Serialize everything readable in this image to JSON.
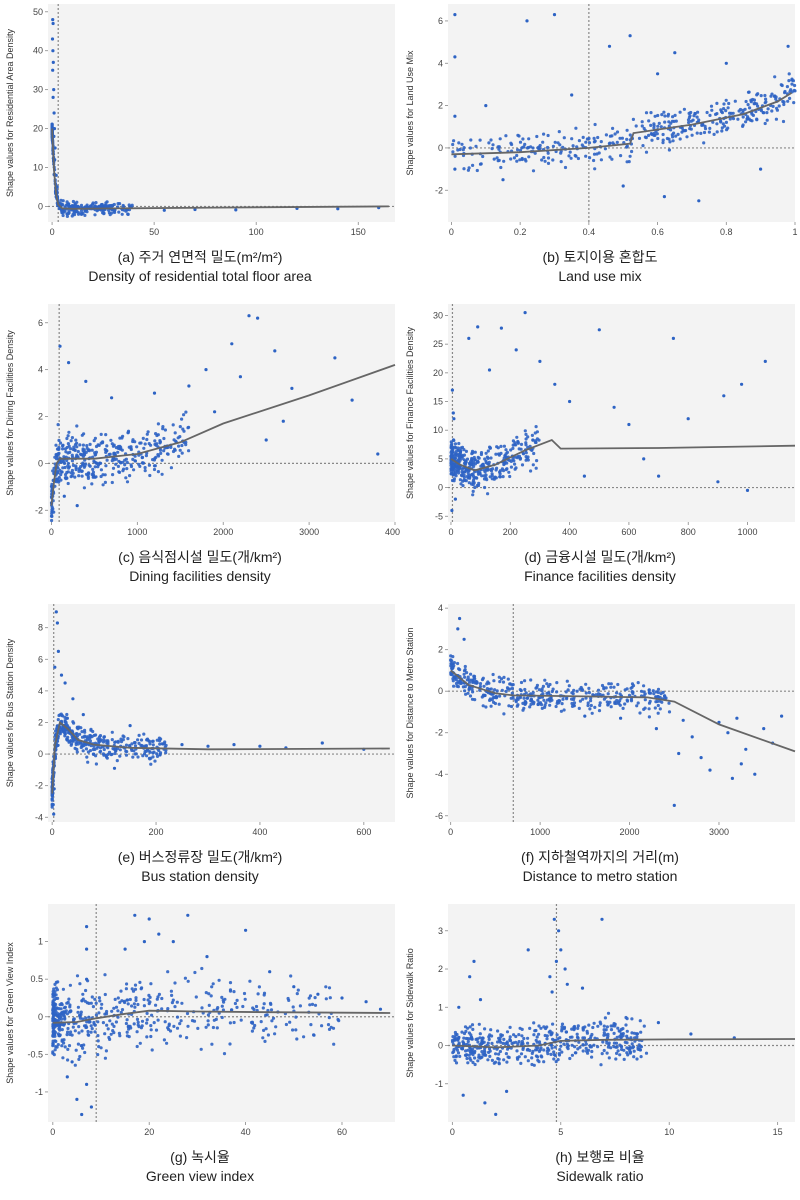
{
  "colors": {
    "point": "#2d63c4",
    "trend": "#666666",
    "zero_line": "#888888",
    "axis": "#cccccc",
    "plot_bg": "#f3f3f3"
  },
  "chart_data": [
    {
      "type": "scatter",
      "title": "(a) 주거 연면적 밀도(m²/m²)",
      "subtitle": "Density of residential total floor area",
      "xlabel": "",
      "ylabel": "Shape values for Residential Area Density",
      "xlim": [
        -2,
        168
      ],
      "ylim": [
        -4,
        52
      ],
      "xticks": [
        0,
        50,
        100,
        150
      ],
      "yticks": [
        0,
        10,
        20,
        30,
        40,
        50
      ],
      "vline": 3,
      "trend": [
        [
          0,
          20
        ],
        [
          1,
          9
        ],
        [
          2,
          3
        ],
        [
          3,
          0.5
        ],
        [
          5,
          -0.5
        ],
        [
          10,
          -0.6
        ],
        [
          30,
          -0.5
        ],
        [
          80,
          -0.3
        ],
        [
          165,
          0
        ]
      ],
      "cluster": {
        "x_range": [
          0,
          40
        ],
        "skew": 3,
        "noise": 0.8,
        "n": 320
      },
      "extra_points": [
        [
          0.3,
          48
        ],
        [
          0.5,
          47
        ],
        [
          0.2,
          43
        ],
        [
          0.4,
          40
        ],
        [
          0.6,
          37
        ],
        [
          0.3,
          35
        ],
        [
          0.8,
          30
        ],
        [
          0.5,
          28
        ],
        [
          1,
          24
        ],
        [
          1.2,
          20
        ],
        [
          0.9,
          18
        ],
        [
          1.5,
          15
        ],
        [
          1.3,
          12
        ],
        [
          2,
          8
        ],
        [
          2.5,
          5
        ],
        [
          55,
          -1
        ],
        [
          70,
          -0.8
        ],
        [
          90,
          -0.9
        ],
        [
          120,
          -0.5
        ],
        [
          140,
          -0.6
        ],
        [
          160,
          -0.3
        ]
      ]
    },
    {
      "type": "scatter",
      "title": "(b) 토지이용 혼합도",
      "subtitle": "Land use mix",
      "xlabel": "",
      "ylabel": "Shape values for Land Use Mix",
      "xlim": [
        -0.01,
        1.0
      ],
      "ylim": [
        -3.5,
        6.8
      ],
      "xticks": [
        0,
        0.2,
        0.4,
        0.6,
        0.8,
        1
      ],
      "yticks": [
        -2,
        0,
        2,
        4,
        6
      ],
      "vline": 0.4,
      "trend": [
        [
          0,
          -0.3
        ],
        [
          0.2,
          -0.2
        ],
        [
          0.4,
          0
        ],
        [
          0.52,
          0.2
        ],
        [
          0.53,
          0.7
        ],
        [
          0.7,
          1.1
        ],
        [
          0.85,
          1.6
        ],
        [
          0.95,
          2.2
        ],
        [
          0.99,
          2.6
        ]
      ],
      "cluster": {
        "x_range": [
          0,
          1
        ],
        "skew": 0.8,
        "noise": 0.45,
        "n": 420
      },
      "extra_points": [
        [
          0.01,
          6.3
        ],
        [
          0.01,
          4.3
        ],
        [
          0.01,
          1.5
        ],
        [
          0.01,
          -1.0
        ],
        [
          0.22,
          6.0
        ],
        [
          0.3,
          6.3
        ],
        [
          0.46,
          4.8
        ],
        [
          0.52,
          5.3
        ],
        [
          0.6,
          3.5
        ],
        [
          0.65,
          4.5
        ],
        [
          0.72,
          -2.5
        ],
        [
          0.8,
          4.0
        ],
        [
          0.9,
          -1.0
        ],
        [
          0.98,
          4.8
        ],
        [
          0.35,
          2.5
        ],
        [
          0.1,
          2.0
        ],
        [
          0.15,
          -1.5
        ],
        [
          0.5,
          -1.8
        ],
        [
          0.62,
          -2.3
        ]
      ]
    },
    {
      "type": "scatter",
      "title": "(c) 음식점시설 밀도(개/km²)",
      "subtitle": "Dining facilities density",
      "xlabel": "",
      "ylabel": "Shape values for Dining Facilities Density",
      "xlim": [
        -40,
        4000
      ],
      "ylim": [
        -2.5,
        6.8
      ],
      "xticks": [
        0,
        1000,
        2000,
        3000,
        4000
      ],
      "yticks": [
        -2,
        0,
        2,
        4,
        6
      ],
      "vline": 90,
      "trend": [
        [
          0,
          -1.8
        ],
        [
          30,
          -0.8
        ],
        [
          60,
          0
        ],
        [
          100,
          0.2
        ],
        [
          500,
          0.2
        ],
        [
          1000,
          0.4
        ],
        [
          1500,
          0.9
        ],
        [
          2000,
          1.7
        ],
        [
          3000,
          2.9
        ],
        [
          4000,
          4.2
        ]
      ],
      "cluster": {
        "x_range": [
          0,
          1600
        ],
        "skew": 1.6,
        "noise": 0.55,
        "n": 420
      },
      "extra_points": [
        [
          2300,
          6.3
        ],
        [
          2400,
          6.2
        ],
        [
          2100,
          5.1
        ],
        [
          2600,
          4.8
        ],
        [
          1800,
          4.0
        ],
        [
          2800,
          3.2
        ],
        [
          3300,
          4.5
        ],
        [
          2200,
          3.7
        ],
        [
          1600,
          3.3
        ],
        [
          2500,
          1.0
        ],
        [
          3500,
          2.7
        ],
        [
          3800,
          0.4
        ],
        [
          1900,
          2.2
        ],
        [
          2700,
          1.8
        ],
        [
          400,
          3.5
        ],
        [
          200,
          4.3
        ],
        [
          100,
          5.0
        ],
        [
          700,
          2.8
        ],
        [
          1200,
          3.0
        ],
        [
          300,
          -1.8
        ],
        [
          150,
          -1.4
        ]
      ]
    },
    {
      "type": "scatter",
      "title": "(d) 금융시설 밀도(개/km²)",
      "subtitle": "Finance facilities density",
      "xlabel": "",
      "ylabel": "Shape values for Finance Facilities Density",
      "xlim": [
        -10,
        1160
      ],
      "ylim": [
        -6,
        32
      ],
      "xticks": [
        0,
        200,
        400,
        600,
        800,
        1000
      ],
      "yticks": [
        -5,
        0,
        5,
        10,
        15,
        20,
        25,
        30
      ],
      "vline": 5,
      "trend": [
        [
          0,
          5
        ],
        [
          30,
          4
        ],
        [
          80,
          3
        ],
        [
          150,
          4
        ],
        [
          250,
          6.5
        ],
        [
          340,
          8.3
        ],
        [
          370,
          6.8
        ],
        [
          700,
          6.9
        ],
        [
          1160,
          7.3
        ]
      ],
      "cluster": {
        "x_range": [
          0,
          300
        ],
        "skew": 1.8,
        "noise": 1.8,
        "n": 380
      },
      "extra_points": [
        [
          250,
          30.5
        ],
        [
          170,
          27.8
        ],
        [
          90,
          28.0
        ],
        [
          60,
          26.0
        ],
        [
          220,
          24.0
        ],
        [
          500,
          27.5
        ],
        [
          750,
          26.0
        ],
        [
          350,
          18.0
        ],
        [
          300,
          22.0
        ],
        [
          130,
          20.5
        ],
        [
          400,
          15.0
        ],
        [
          550,
          14.0
        ],
        [
          920,
          16.0
        ],
        [
          980,
          18.0
        ],
        [
          1060,
          22.0
        ],
        [
          800,
          12.0
        ],
        [
          650,
          5.0
        ],
        [
          700,
          2.0
        ],
        [
          900,
          1.0
        ],
        [
          1000,
          -0.5
        ],
        [
          600,
          11.0
        ],
        [
          450,
          2.0
        ],
        [
          5,
          17.0
        ],
        [
          8,
          13.0
        ],
        [
          3,
          -4.0
        ],
        [
          10,
          12.0
        ],
        [
          15,
          -2.0
        ]
      ]
    },
    {
      "type": "scatter",
      "title": "(e) 버스정류장 밀도(개/km²)",
      "subtitle": "Bus station density",
      "xlabel": "",
      "ylabel": "Shape values for Bus Station Density",
      "xlim": [
        -8,
        660
      ],
      "ylim": [
        -4.3,
        9.5
      ],
      "xticks": [
        0,
        200,
        400,
        600
      ],
      "yticks": [
        -4,
        -2,
        0,
        2,
        4,
        6,
        8
      ],
      "vline": 3,
      "trend": [
        [
          0,
          -2.5
        ],
        [
          5,
          0.5
        ],
        [
          15,
          2.0
        ],
        [
          30,
          1.6
        ],
        [
          50,
          0.9
        ],
        [
          80,
          0.6
        ],
        [
          150,
          0.4
        ],
        [
          300,
          0.3
        ],
        [
          650,
          0.35
        ]
      ],
      "cluster": {
        "x_range": [
          0,
          220
        ],
        "skew": 2.2,
        "noise": 0.45,
        "n": 420
      },
      "extra_points": [
        [
          8,
          9.0
        ],
        [
          10,
          8.3
        ],
        [
          12,
          6.5
        ],
        [
          5,
          5.5
        ],
        [
          18,
          5.0
        ],
        [
          25,
          4.5
        ],
        [
          3,
          -3.8
        ],
        [
          2,
          -3.2
        ],
        [
          4,
          -2.2
        ],
        [
          40,
          3.5
        ],
        [
          60,
          2.5
        ],
        [
          250,
          0.6
        ],
        [
          300,
          0.5
        ],
        [
          350,
          0.6
        ],
        [
          400,
          0.5
        ],
        [
          450,
          0.4
        ],
        [
          520,
          0.7
        ],
        [
          600,
          0.3
        ],
        [
          150,
          1.8
        ],
        [
          120,
          -0.9
        ]
      ]
    },
    {
      "type": "scatter",
      "title": "(f) 지하철역까지의 거리(m)",
      "subtitle": "Distance to metro station",
      "xlabel": "",
      "ylabel": "Shape values for Distance to Metro Station",
      "xlim": [
        -30,
        3850
      ],
      "ylim": [
        -6.3,
        4.2
      ],
      "xticks": [
        0,
        1000,
        2000,
        3000
      ],
      "yticks": [
        -6,
        -4,
        -2,
        0,
        2,
        4
      ],
      "vline": 700,
      "trend": [
        [
          0,
          1.0
        ],
        [
          200,
          0.3
        ],
        [
          500,
          -0.1
        ],
        [
          700,
          -0.2
        ],
        [
          1500,
          -0.25
        ],
        [
          2200,
          -0.3
        ],
        [
          2500,
          -0.5
        ],
        [
          3000,
          -1.6
        ],
        [
          3850,
          -2.9
        ]
      ],
      "cluster": {
        "x_range": [
          0,
          2450
        ],
        "skew": 1.4,
        "noise": 0.35,
        "n": 420
      },
      "extra_points": [
        [
          100,
          3.5
        ],
        [
          150,
          2.5
        ],
        [
          80,
          3.0
        ],
        [
          2600,
          -1.4
        ],
        [
          2700,
          -2.2
        ],
        [
          2800,
          -3.2
        ],
        [
          2900,
          -3.8
        ],
        [
          3000,
          -1.5
        ],
        [
          3100,
          -2.0
        ],
        [
          3200,
          -1.3
        ],
        [
          3300,
          -2.8
        ],
        [
          3400,
          -4.0
        ],
        [
          3500,
          -1.8
        ],
        [
          3600,
          -2.5
        ],
        [
          3700,
          -1.2
        ],
        [
          2500,
          -5.5
        ],
        [
          2550,
          -3.0
        ],
        [
          2300,
          -1.8
        ],
        [
          1900,
          -1.3
        ],
        [
          1500,
          -1.2
        ],
        [
          3150,
          -4.2
        ],
        [
          3250,
          -3.5
        ]
      ]
    },
    {
      "type": "scatter",
      "title": "(g) 녹시율",
      "subtitle": "Green view index",
      "xlabel": "",
      "ylabel": "Shape values for Green View Index",
      "xlim": [
        -1,
        71
      ],
      "ylim": [
        -1.4,
        1.5
      ],
      "xticks": [
        0,
        20,
        40,
        60
      ],
      "yticks": [
        -1,
        -0.5,
        0,
        0.5,
        1
      ],
      "vline": 9,
      "trend": [
        [
          0,
          -0.08
        ],
        [
          5,
          -0.07
        ],
        [
          9,
          -0.02
        ],
        [
          15,
          0.04
        ],
        [
          20,
          0.08
        ],
        [
          30,
          0.07
        ],
        [
          45,
          0.06
        ],
        [
          70,
          0.05
        ]
      ],
      "cluster": {
        "x_range": [
          0,
          60
        ],
        "skew": 2.3,
        "noise": 0.22,
        "n": 520
      },
      "extra_points": [
        [
          5,
          -1.1
        ],
        [
          6,
          -1.3
        ],
        [
          7,
          -0.9
        ],
        [
          4,
          -0.6
        ],
        [
          8,
          -1.2
        ],
        [
          3,
          -0.8
        ],
        [
          7,
          0.5
        ],
        [
          7,
          0.9
        ],
        [
          7,
          1.2
        ],
        [
          17,
          1.35
        ],
        [
          20,
          1.3
        ],
        [
          22,
          1.1
        ],
        [
          25,
          1.0
        ],
        [
          28,
          1.35
        ],
        [
          19,
          1.0
        ],
        [
          15,
          0.9
        ],
        [
          32,
          0.8
        ],
        [
          40,
          1.15
        ],
        [
          45,
          0.6
        ],
        [
          50,
          0.4
        ],
        [
          55,
          0.3
        ],
        [
          60,
          0.25
        ],
        [
          65,
          0.2
        ],
        [
          68,
          0.1
        ]
      ]
    },
    {
      "type": "scatter",
      "title": "(h) 보행로 비율",
      "subtitle": "Sidewalk ratio",
      "xlabel": "",
      "ylabel": "Shape values for Sidewalk Ratio",
      "xlim": [
        -0.2,
        15.8
      ],
      "ylim": [
        -2.0,
        3.7
      ],
      "xticks": [
        0,
        5,
        10,
        15
      ],
      "yticks": [
        -1,
        0,
        1,
        2,
        3
      ],
      "vline": 4.8,
      "trend": [
        [
          0,
          0.0
        ],
        [
          2,
          -0.05
        ],
        [
          4,
          0.0
        ],
        [
          5,
          0.12
        ],
        [
          7,
          0.15
        ],
        [
          10,
          0.16
        ],
        [
          15.8,
          0.17
        ]
      ],
      "cluster": {
        "x_range": [
          0,
          9
        ],
        "skew": 1.2,
        "noise": 0.25,
        "n": 480
      },
      "extra_points": [
        [
          4.7,
          3.3
        ],
        [
          4.9,
          3.0
        ],
        [
          5.0,
          2.5
        ],
        [
          4.8,
          2.2
        ],
        [
          5.2,
          2.0
        ],
        [
          4.5,
          1.8
        ],
        [
          5.3,
          1.6
        ],
        [
          4.6,
          1.4
        ],
        [
          6.9,
          3.3
        ],
        [
          3.5,
          2.5
        ],
        [
          1.0,
          2.2
        ],
        [
          0.8,
          1.8
        ],
        [
          1.3,
          1.2
        ],
        [
          0.3,
          1.0
        ],
        [
          2.0,
          -1.8
        ],
        [
          1.5,
          -1.5
        ],
        [
          0.5,
          -1.3
        ],
        [
          2.5,
          -1.2
        ],
        [
          6.0,
          1.5
        ],
        [
          9.5,
          0.6
        ],
        [
          11,
          0.3
        ],
        [
          13,
          0.2
        ]
      ]
    }
  ]
}
